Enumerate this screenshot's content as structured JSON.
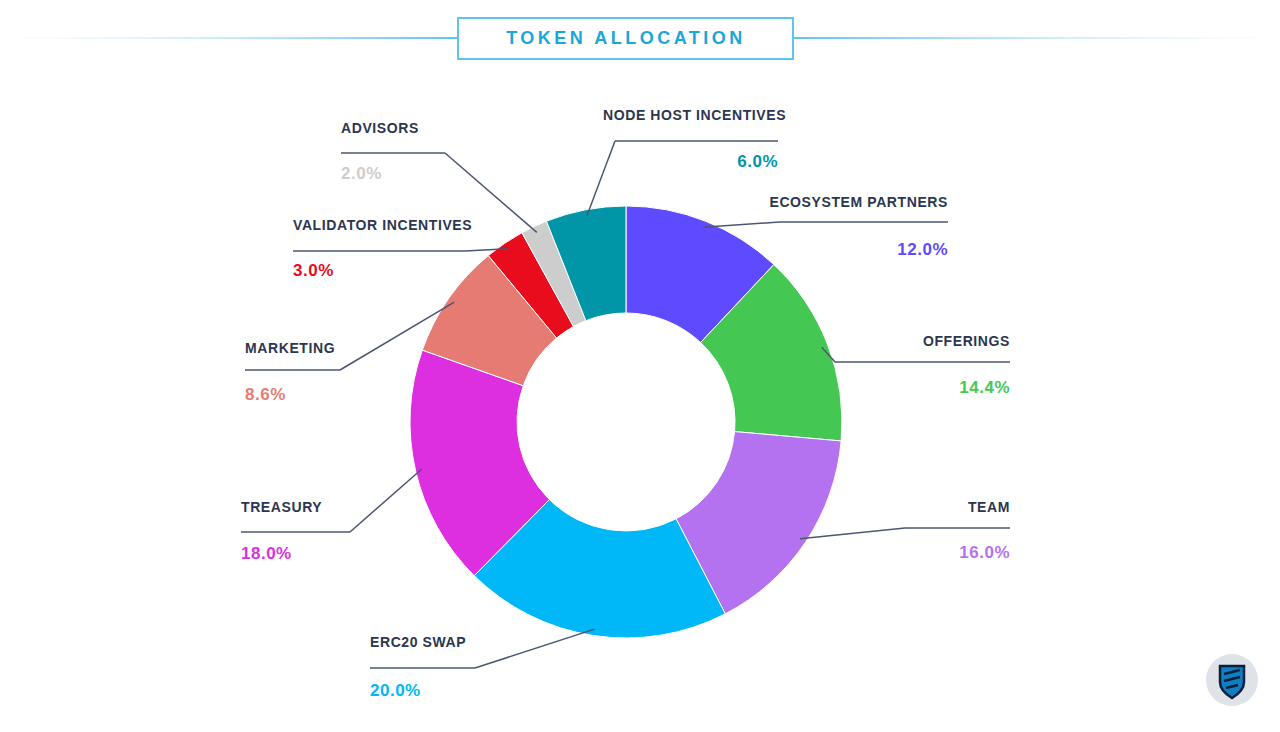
{
  "chart_data": {
    "type": "donut",
    "title": "TOKEN ALLOCATION",
    "categories": [
      "ECOSYSTEM PARTNERS",
      "OFFERINGS",
      "TEAM",
      "ERC20 SWAP",
      "TREASURY",
      "MARKETING",
      "VALIDATOR INCENTIVES",
      "ADVISORS",
      "NODE HOST INCENTIVES"
    ],
    "values": [
      12.0,
      14.4,
      16.0,
      20.0,
      18.0,
      8.6,
      3.0,
      2.0,
      6.0
    ],
    "value_labels": [
      "12.0%",
      "14.4%",
      "16.0%",
      "20.0%",
      "18.0%",
      "8.6%",
      "3.0%",
      "2.0%",
      "6.0%"
    ],
    "colors": [
      "#5f4bff",
      "#45c853",
      "#b572f0",
      "#00b8f7",
      "#dd2fe0",
      "#e67b74",
      "#e80c1c",
      "#cdcdcd",
      "#0096a8"
    ],
    "data_labels": true
  }
}
